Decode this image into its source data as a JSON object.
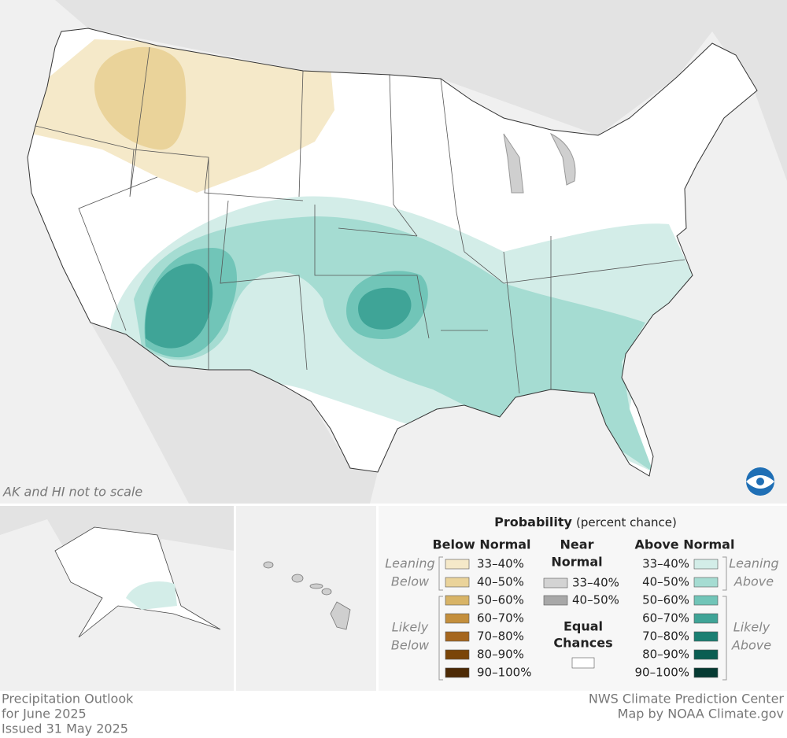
{
  "map_note": "AK and HI not to scale",
  "legend": {
    "title": "Probability",
    "subtitle": "(percent chance)",
    "below_normal": {
      "heading": "Below Normal",
      "leaning_label": [
        "Leaning",
        "Below"
      ],
      "likely_label": [
        "Likely",
        "Below"
      ],
      "items": [
        {
          "label": "33–40%",
          "color": "#f5e9c9"
        },
        {
          "label": "40–50%",
          "color": "#ead39a"
        },
        {
          "label": "50–60%",
          "color": "#d8b467"
        },
        {
          "label": "60–70%",
          "color": "#c48f3c"
        },
        {
          "label": "70–80%",
          "color": "#a5661e"
        },
        {
          "label": "80–90%",
          "color": "#7a4508"
        },
        {
          "label": "90–100%",
          "color": "#4d2a05"
        }
      ]
    },
    "near_normal": {
      "heading": [
        "Near",
        "Normal"
      ],
      "items": [
        {
          "label": "33–40%",
          "color": "#d3d3d3"
        },
        {
          "label": "40–50%",
          "color": "#a8a8a8"
        }
      ],
      "equal_heading": [
        "Equal",
        "Chances"
      ],
      "equal_color": "#ffffff"
    },
    "above_normal": {
      "heading": "Above Normal",
      "leaning_label": [
        "Leaning",
        "Above"
      ],
      "likely_label": [
        "Likely",
        "Above"
      ],
      "items": [
        {
          "label": "33–40%",
          "color": "#d3ede8"
        },
        {
          "label": "40–50%",
          "color": "#a5dcd2"
        },
        {
          "label": "50–60%",
          "color": "#71c5b8"
        },
        {
          "label": "60–70%",
          "color": "#3fa497"
        },
        {
          "label": "70–80%",
          "color": "#1a7f72"
        },
        {
          "label": "80–90%",
          "color": "#0b5e52"
        },
        {
          "label": "90–100%",
          "color": "#053a32"
        }
      ]
    }
  },
  "footer": {
    "left": [
      "Precipitation Outlook",
      "for June 2025",
      "Issued 31 May 2025"
    ],
    "right": [
      "NWS Climate Prediction Center",
      "Map by NOAA Climate.gov"
    ]
  }
}
